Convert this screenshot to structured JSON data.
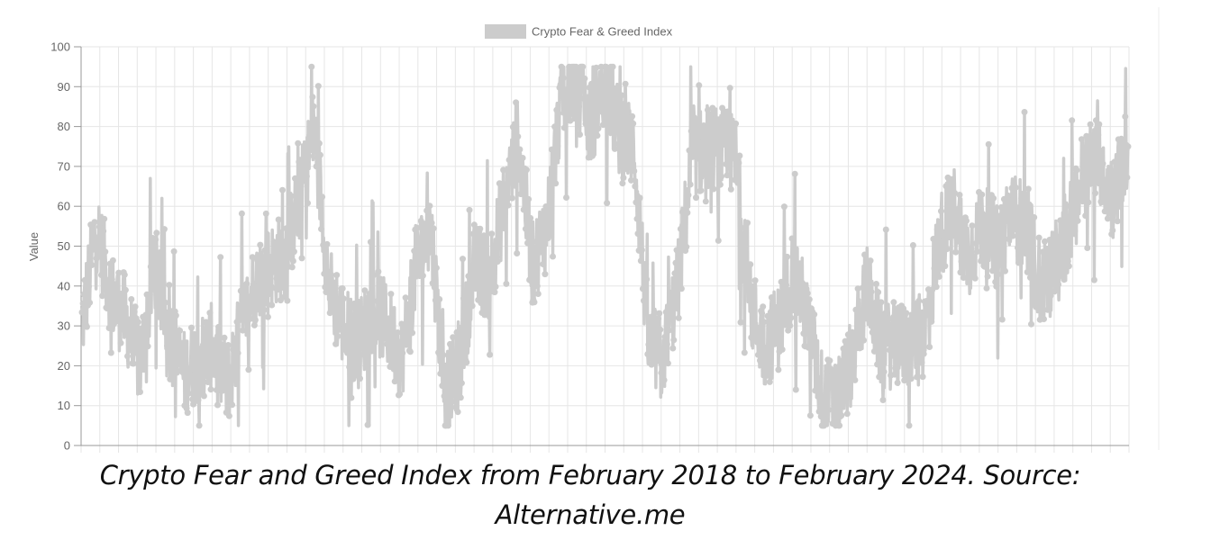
{
  "caption": "Crypto Fear and Greed Index from February 2018 to February 2024. Source: Alternative.me",
  "colors": {
    "series": "#cccccc",
    "grid": "#e6e6e6",
    "axis": "#999999",
    "text": "#666666"
  },
  "chart_data": {
    "type": "line",
    "title": "",
    "xlabel": "",
    "ylabel": "Value",
    "ylim": [
      0,
      100
    ],
    "yticks": [
      0,
      10,
      20,
      30,
      40,
      50,
      60,
      70,
      80,
      90,
      100
    ],
    "x_range": [
      "2018-02",
      "2024-02"
    ],
    "grid": true,
    "legend_position": "top-center",
    "series": [
      {
        "name": "Crypto Fear & Greed Index",
        "color": "#cccccc",
        "x": [
          "2018-02",
          "2018-03",
          "2018-04",
          "2018-05",
          "2018-06",
          "2018-07",
          "2018-08",
          "2018-09",
          "2018-10",
          "2018-11",
          "2018-12",
          "2019-01",
          "2019-02",
          "2019-03",
          "2019-04",
          "2019-05",
          "2019-06",
          "2019-07",
          "2019-08",
          "2019-09",
          "2019-10",
          "2019-11",
          "2019-12",
          "2020-01",
          "2020-02",
          "2020-03",
          "2020-04",
          "2020-05",
          "2020-06",
          "2020-07",
          "2020-08",
          "2020-09",
          "2020-10",
          "2020-11",
          "2020-12",
          "2021-01",
          "2021-02",
          "2021-03",
          "2021-04",
          "2021-05",
          "2021-06",
          "2021-07",
          "2021-08",
          "2021-09",
          "2021-10",
          "2021-11",
          "2021-12",
          "2022-01",
          "2022-02",
          "2022-03",
          "2022-04",
          "2022-05",
          "2022-06",
          "2022-07",
          "2022-08",
          "2022-09",
          "2022-10",
          "2022-11",
          "2022-12",
          "2023-01",
          "2023-02",
          "2023-03",
          "2023-04",
          "2023-05",
          "2023-06",
          "2023-07",
          "2023-08",
          "2023-09",
          "2023-10",
          "2023-11",
          "2023-12",
          "2024-01",
          "2024-02"
        ],
        "values": [
          30,
          55,
          38,
          32,
          20,
          45,
          28,
          18,
          22,
          25,
          15,
          30,
          42,
          45,
          48,
          62,
          80,
          40,
          30,
          25,
          35,
          30,
          22,
          45,
          55,
          12,
          20,
          45,
          42,
          60,
          78,
          45,
          55,
          88,
          92,
          80,
          92,
          78,
          75,
          25,
          22,
          40,
          72,
          75,
          74,
          72,
          35,
          25,
          30,
          45,
          30,
          12,
          10,
          22,
          40,
          25,
          25,
          25,
          28,
          52,
          60,
          48,
          55,
          50,
          58,
          55,
          40,
          45,
          55,
          70,
          72,
          62,
          75
        ],
        "min": 5,
        "max": 95
      }
    ]
  }
}
